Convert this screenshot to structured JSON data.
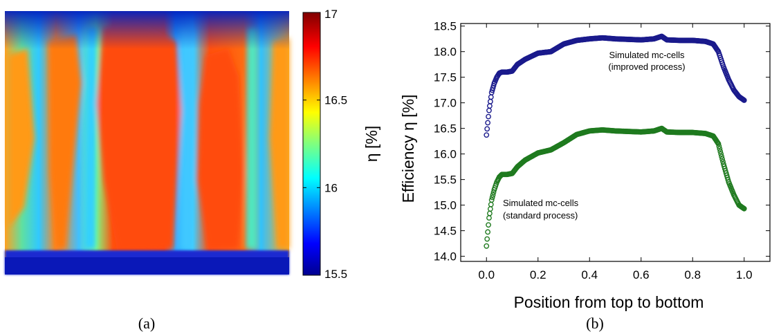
{
  "panels": {
    "a_label": "(a)",
    "b_label": "(b)"
  },
  "chart_data": [
    {
      "type": "heatmap",
      "colormap": "jet",
      "colorbar": {
        "label": "η [%]",
        "range": [
          15.5,
          17
        ],
        "ticks": [
          15.5,
          16,
          16.5,
          17
        ],
        "tick_labels": [
          "15.5",
          "16",
          "16.5",
          "17"
        ]
      },
      "description_regions": [
        {
          "x0": 0.15,
          "x1": 0.25,
          "level": 16.75
        },
        {
          "x0": 0.34,
          "x1": 0.57,
          "level": 16.85
        },
        {
          "x0": 0.66,
          "x1": 0.84,
          "level": 16.8
        }
      ]
    },
    {
      "type": "scatter",
      "xlabel": "Position from top to bottom",
      "ylabel": "Efficiency η [%]",
      "xlim": [
        -0.1,
        1.1
      ],
      "ylim": [
        13.9,
        18.55
      ],
      "xticks": [
        "0.0",
        "0.2",
        "0.4",
        "0.6",
        "0.8",
        "1.0"
      ],
      "xtick_values": [
        0.0,
        0.2,
        0.4,
        0.6,
        0.8,
        1.0
      ],
      "yticks": [
        "14.0",
        "14.5",
        "15.0",
        "15.5",
        "16.0",
        "16.5",
        "17.0",
        "17.5",
        "18.0",
        "18.5"
      ],
      "ytick_values": [
        14.0,
        14.5,
        15.0,
        15.5,
        16.0,
        16.5,
        17.0,
        17.5,
        18.0,
        18.5
      ],
      "series": [
        {
          "color": "#1a1a8c",
          "annotation": [
            "Simulated mc-cells",
            "(improved process)"
          ],
          "x": [
            0.0,
            0.01,
            0.02,
            0.03,
            0.04,
            0.05,
            0.06,
            0.08,
            0.1,
            0.12,
            0.15,
            0.2,
            0.25,
            0.3,
            0.35,
            0.4,
            0.45,
            0.5,
            0.55,
            0.6,
            0.65,
            0.68,
            0.7,
            0.75,
            0.8,
            0.85,
            0.88,
            0.9,
            0.92,
            0.94,
            0.96,
            0.98,
            1.0
          ],
          "y": [
            16.37,
            16.85,
            17.2,
            17.38,
            17.5,
            17.58,
            17.6,
            17.6,
            17.62,
            17.75,
            17.85,
            17.97,
            18.0,
            18.15,
            18.22,
            18.25,
            18.27,
            18.25,
            18.24,
            18.23,
            18.25,
            18.3,
            18.23,
            18.22,
            18.22,
            18.2,
            18.15,
            18.0,
            17.7,
            17.45,
            17.25,
            17.12,
            17.05
          ]
        },
        {
          "color": "#1f7a1f",
          "annotation": [
            "Simulated mc-cells",
            "(standard process)"
          ],
          "x": [
            0.0,
            0.01,
            0.02,
            0.03,
            0.04,
            0.05,
            0.06,
            0.08,
            0.1,
            0.12,
            0.15,
            0.2,
            0.25,
            0.3,
            0.35,
            0.4,
            0.45,
            0.5,
            0.55,
            0.6,
            0.65,
            0.68,
            0.7,
            0.75,
            0.8,
            0.85,
            0.88,
            0.9,
            0.92,
            0.94,
            0.96,
            0.98,
            1.0
          ],
          "y": [
            14.2,
            14.75,
            15.1,
            15.3,
            15.45,
            15.55,
            15.6,
            15.6,
            15.62,
            15.75,
            15.88,
            16.02,
            16.08,
            16.22,
            16.38,
            16.45,
            16.47,
            16.45,
            16.44,
            16.43,
            16.45,
            16.5,
            16.43,
            16.42,
            16.42,
            16.4,
            16.35,
            16.2,
            15.8,
            15.45,
            15.2,
            15.0,
            14.93
          ]
        }
      ]
    }
  ]
}
